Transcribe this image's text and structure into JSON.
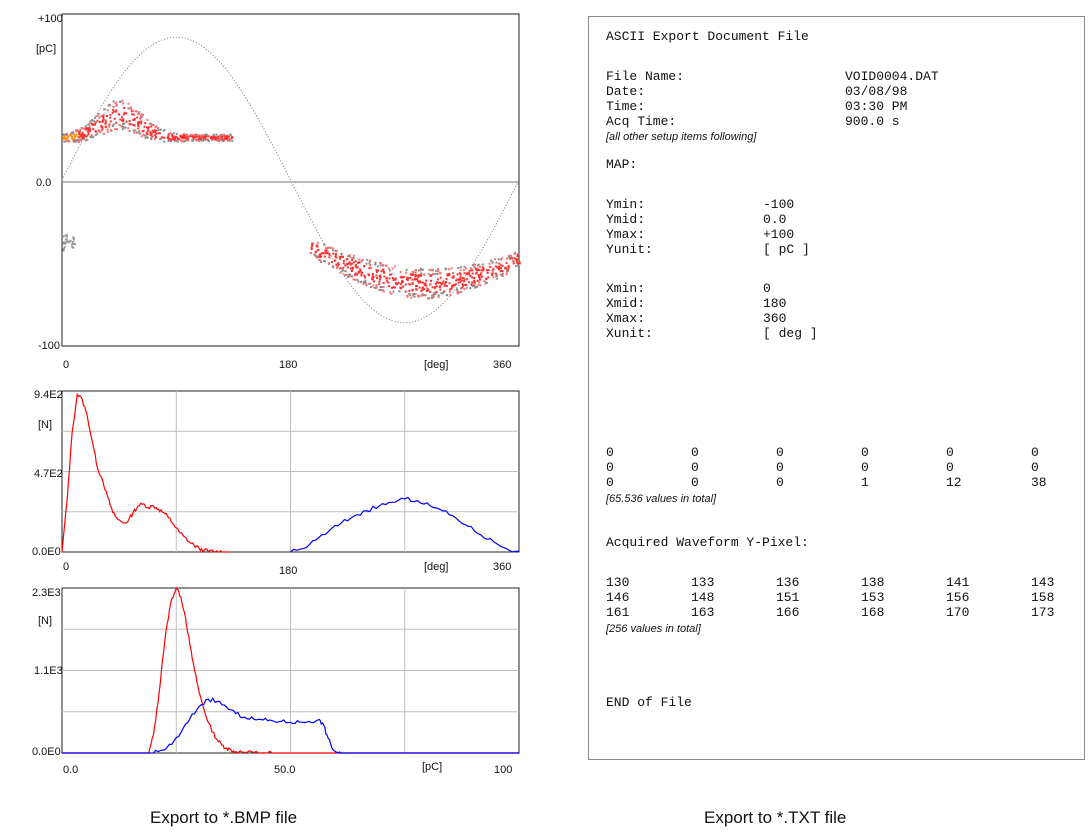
{
  "chart_data": [
    {
      "type": "scatter",
      "title": "",
      "ylabel": "[pC]",
      "xlabel": "[deg]",
      "ylim": [
        -100,
        100
      ],
      "xlim": [
        0,
        360
      ],
      "y_ticks": [
        "+100",
        "0.0",
        "-100"
      ],
      "x_ticks": [
        "0",
        "180",
        "360"
      ],
      "grid": false,
      "reference_sine_amplitude": 100,
      "clusters": [
        {
          "x_range": [
            0,
            135
          ],
          "y_center": 26,
          "y_spread": 12,
          "color": "#ff4040"
        },
        {
          "x_range": [
            190,
            360
          ],
          "y_center": -50,
          "y_spread": 12,
          "color": "#ff4040"
        }
      ]
    },
    {
      "type": "line",
      "ylabel": "[N]",
      "xlabel": "[deg]",
      "xlim": [
        0,
        360
      ],
      "ylim": [
        0,
        940
      ],
      "y_ticks": [
        "9.4E2",
        "4.7E2",
        "0.0E0"
      ],
      "x_ticks": [
        "0",
        "180",
        "360"
      ],
      "grid": true,
      "series": [
        {
          "color": "#ff0000",
          "x": [
            0,
            4,
            8,
            12,
            16,
            20,
            24,
            28,
            32,
            36,
            40,
            44,
            48,
            52,
            56,
            60,
            64,
            68,
            72,
            76,
            80,
            84,
            88,
            92,
            96,
            100,
            104,
            108,
            112,
            116,
            120,
            124,
            128,
            132
          ],
          "y": [
            0,
            300,
            700,
            920,
            890,
            790,
            640,
            490,
            420,
            320,
            230,
            190,
            170,
            180,
            230,
            270,
            280,
            260,
            270,
            250,
            230,
            200,
            160,
            120,
            90,
            60,
            40,
            20,
            10,
            5,
            2,
            1,
            0,
            0
          ]
        },
        {
          "color": "#0000ff",
          "x": [
            180,
            190,
            200,
            210,
            220,
            230,
            240,
            250,
            260,
            270,
            280,
            290,
            300,
            310,
            320,
            330,
            340,
            350,
            360
          ],
          "y": [
            0,
            20,
            70,
            120,
            170,
            210,
            240,
            270,
            290,
            310,
            300,
            270,
            240,
            200,
            150,
            100,
            60,
            20,
            5
          ]
        }
      ]
    },
    {
      "type": "line",
      "ylabel": "[N]",
      "xlabel": "[pC]",
      "xlim": [
        0,
        100
      ],
      "ylim": [
        0,
        2300
      ],
      "y_ticks": [
        "2.3E3",
        "1.1E3",
        "0.0E0"
      ],
      "x_ticks": [
        "0.0",
        "50.0",
        "100"
      ],
      "grid": true,
      "series": [
        {
          "color": "#ff0000",
          "x": [
            0,
            19,
            20,
            21,
            22,
            23,
            24,
            25,
            26,
            27,
            28,
            29,
            30,
            31,
            32,
            33,
            34,
            35,
            36,
            37,
            38,
            40,
            42,
            44,
            46,
            100
          ],
          "y": [
            0,
            0,
            250,
            700,
            1300,
            1800,
            2150,
            2300,
            2180,
            1900,
            1500,
            1150,
            850,
            620,
            430,
            290,
            180,
            110,
            70,
            40,
            20,
            10,
            5,
            2,
            0,
            0
          ]
        },
        {
          "color": "#0000ff",
          "x": [
            0,
            20,
            22,
            24,
            26,
            28,
            30,
            32,
            34,
            36,
            38,
            40,
            42,
            44,
            46,
            48,
            50,
            52,
            54,
            56,
            57,
            58,
            59,
            60,
            61,
            100
          ],
          "y": [
            0,
            0,
            40,
            120,
            280,
            480,
            650,
            750,
            720,
            640,
            550,
            500,
            470,
            460,
            450,
            440,
            430,
            430,
            440,
            460,
            420,
            250,
            80,
            10,
            0,
            0
          ]
        }
      ]
    }
  ],
  "export_txt": {
    "heading": "ASCII Export Document File",
    "file_name_label": "File Name:",
    "file_name_value": "VOID0004.DAT",
    "date_label": "Date:",
    "date_value": "03/08/98",
    "time_label": "Time:",
    "time_value": "03:30 PM",
    "acq_label": "Acq Time:",
    "acq_value": "900.0 s",
    "setup_note": "[all other setup items following]",
    "map_label": "MAP:",
    "ymin_label": "Ymin:",
    "ymin_value": "-100",
    "ymid_label": "Ymid:",
    "ymid_value": "0.0",
    "ymax_label": "Ymax:",
    "ymax_value": "+100",
    "yunit_label": "Yunit:",
    "yunit_value": "[ pC ]",
    "xmin_label": "Xmin:",
    "xmin_value": "0",
    "xmid_label": "Xmid:",
    "xmid_value": "180",
    "xmax_label": "Xmax:",
    "xmax_value": "360",
    "xunit_label": "Xunit:",
    "xunit_value": "[ deg ]",
    "map_rows": [
      [
        "0",
        "0",
        "0",
        "0",
        "0",
        "0"
      ],
      [
        "0",
        "0",
        "0",
        "0",
        "0",
        "0"
      ],
      [
        "0",
        "0",
        "0",
        "1",
        "12",
        "38"
      ]
    ],
    "map_note": "[65.536 values in total]",
    "waveform_label": "Acquired Waveform Y-Pixel:",
    "wave_rows": [
      [
        "130",
        "133",
        "136",
        "138",
        "141",
        "143"
      ],
      [
        "146",
        "148",
        "151",
        "153",
        "156",
        "158"
      ],
      [
        "161",
        "163",
        "166",
        "168",
        "170",
        "173"
      ]
    ],
    "wave_note": "[256 values in total]",
    "end_label": "END of File"
  },
  "captions": {
    "left": "Export to *.BMP file",
    "right": "Export to *.TXT file"
  }
}
